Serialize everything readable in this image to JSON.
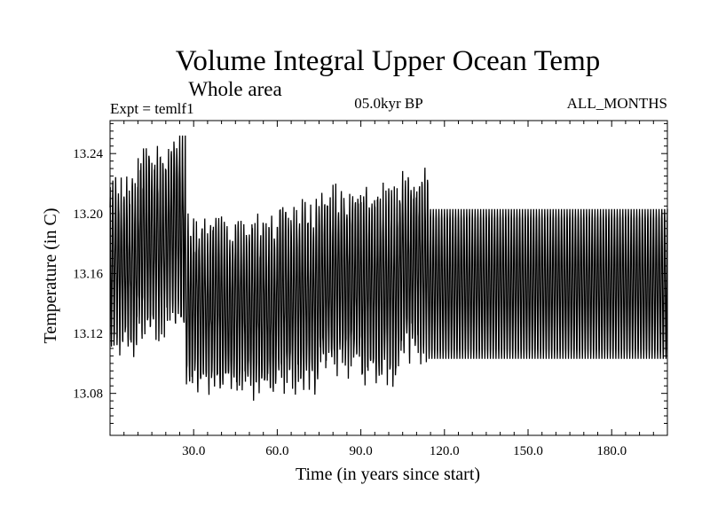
{
  "chart_data": {
    "type": "line",
    "title": "Volume Integral Upper Ocean Temp",
    "subtitle": "Whole area",
    "experiment_label": "Expt = temlf1",
    "period_label": "05.0kyr BP",
    "months_label": "ALL_MONTHS",
    "xlabel": "Time (in years since start)",
    "ylabel": "Temperature (in C)",
    "xlim": [
      0,
      200
    ],
    "ylim": [
      13.052,
      13.262
    ],
    "x_ticks": [
      30,
      60,
      90,
      120,
      150,
      180
    ],
    "x_tick_labels": [
      "30.0",
      "60.0",
      "90.0",
      "120.0",
      "150.0",
      "180.0"
    ],
    "y_ticks": [
      13.08,
      13.12,
      13.16,
      13.2,
      13.24
    ],
    "y_tick_labels": [
      "13.08",
      "13.12",
      "13.16",
      "13.20",
      "13.24"
    ],
    "grid": false,
    "line_color": "#000000",
    "series": [
      {
        "sampling": "monthly, annual cycle",
        "segments": [
          {
            "x_range": [
              0,
              10
            ],
            "seasonal_min": 13.115,
            "seasonal_max": 13.215
          },
          {
            "x_range": [
              10,
              20
            ],
            "seasonal_min": 13.125,
            "seasonal_max": 13.235
          },
          {
            "x_range": [
              20,
              27
            ],
            "seasonal_min": 13.13,
            "seasonal_max": 13.245
          },
          {
            "x_range": [
              27,
              40
            ],
            "seasonal_min": 13.09,
            "seasonal_max": 13.19
          },
          {
            "x_range": [
              40,
              60
            ],
            "seasonal_min": 13.085,
            "seasonal_max": 13.19
          },
          {
            "x_range": [
              60,
              75
            ],
            "seasonal_min": 13.09,
            "seasonal_max": 13.2
          },
          {
            "x_range": [
              75,
              90
            ],
            "seasonal_min": 13.1,
            "seasonal_max": 13.21
          },
          {
            "x_range": [
              90,
              104
            ],
            "seasonal_min": 13.095,
            "seasonal_max": 13.21
          },
          {
            "x_range": [
              104,
              114
            ],
            "seasonal_min": 13.11,
            "seasonal_max": 13.22
          },
          {
            "x_range": [
              114,
              200
            ],
            "seasonal_min": 13.103,
            "seasonal_max": 13.203
          }
        ],
        "extrema": {
          "max": 13.252,
          "min": 13.068
        }
      }
    ]
  }
}
